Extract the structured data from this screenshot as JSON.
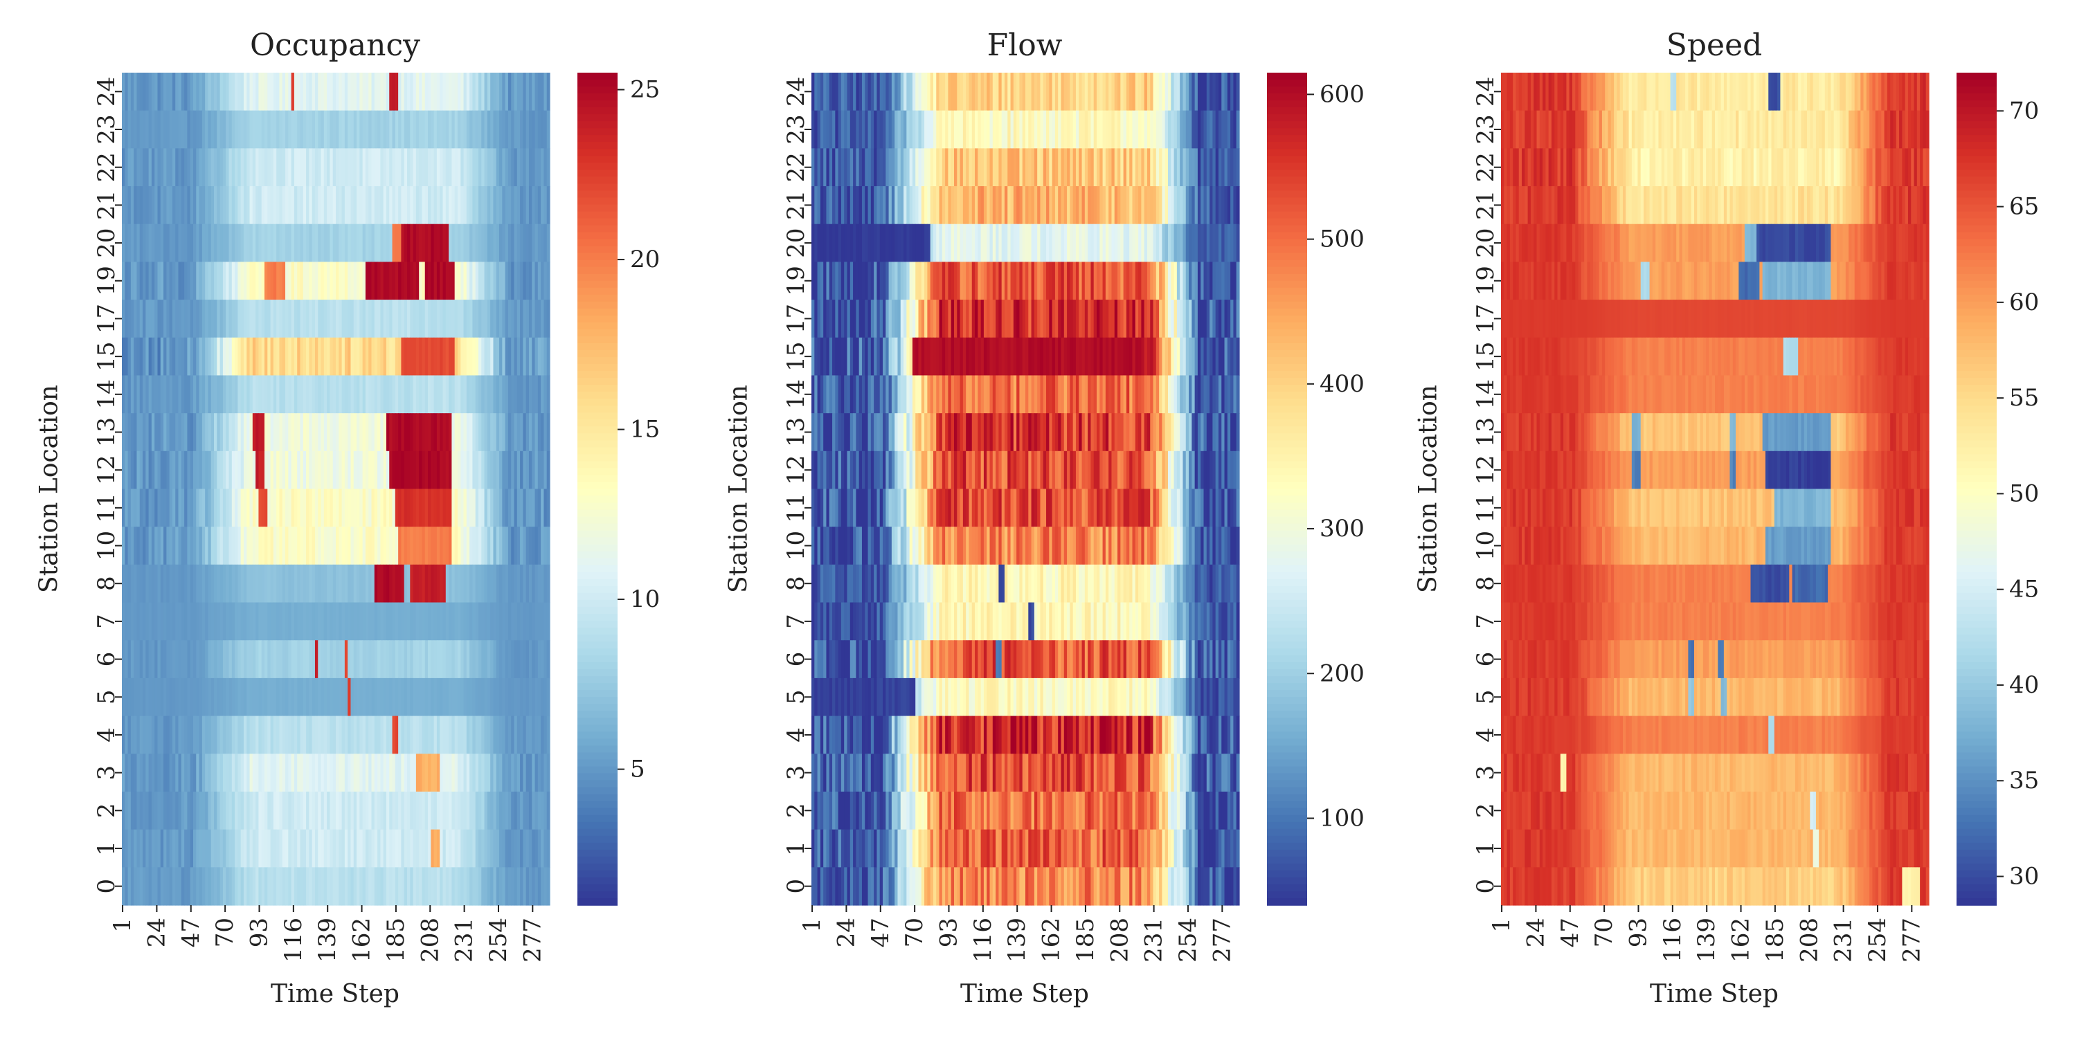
{
  "chart_data": [
    {
      "type": "heatmap",
      "title": "Occupancy",
      "xlabel": "Time Step",
      "ylabel": "Station Location",
      "x_range": [
        1,
        288
      ],
      "x_ticks": [
        "1",
        "24",
        "47",
        "70",
        "93",
        "116",
        "139",
        "162",
        "185",
        "208",
        "231",
        "254",
        "277"
      ],
      "y_ticks": [
        "24",
        "23",
        "22",
        "21",
        "20",
        "19",
        "17",
        "15",
        "14",
        "13",
        "12",
        "11",
        "10",
        "8",
        "7",
        "6",
        "5",
        "4",
        "3",
        "2",
        "1",
        "0"
      ],
      "colorbar": {
        "range": [
          1,
          25.5
        ],
        "ticks": [
          "5",
          "10",
          "15",
          "20",
          "25"
        ],
        "colormap": "RdYlBu_r"
      },
      "base": 5,
      "peak": 11,
      "station_peaks": [
        11,
        8,
        10,
        10,
        8,
        13,
        9,
        16,
        9,
        12,
        12,
        13,
        13,
        7,
        6,
        8,
        6,
        9,
        11,
        10,
        10,
        9
      ],
      "congestion": [
        {
          "row": "24",
          "t": [
            181,
            186
          ],
          "value": 24
        },
        {
          "row": "24",
          "t": [
            116,
            117
          ],
          "value": 23
        },
        {
          "row": "20",
          "t": [
            184,
            188
          ],
          "value": 20
        },
        {
          "row": "20",
          "t": [
            190,
            220
          ],
          "value": 25
        },
        {
          "row": "19",
          "t": [
            165,
            200
          ],
          "value": 25
        },
        {
          "row": "19",
          "t": [
            205,
            225
          ],
          "value": 25
        },
        {
          "row": "19",
          "t": [
            98,
            110
          ],
          "value": 20
        },
        {
          "row": "15",
          "t": [
            190,
            225
          ],
          "value": 22
        },
        {
          "row": "13",
          "t": [
            90,
            96
          ],
          "value": 24
        },
        {
          "row": "13",
          "t": [
            180,
            222
          ],
          "value": 25
        },
        {
          "row": "12",
          "t": [
            92,
            96
          ],
          "value": 24
        },
        {
          "row": "12",
          "t": [
            182,
            222
          ],
          "value": 25
        },
        {
          "row": "11",
          "t": [
            94,
            98
          ],
          "value": 22
        },
        {
          "row": "11",
          "t": [
            185,
            222
          ],
          "value": 23
        },
        {
          "row": "10",
          "t": [
            188,
            222
          ],
          "value": 20
        },
        {
          "row": "8",
          "t": [
            172,
            190
          ],
          "value": 25
        },
        {
          "row": "8",
          "t": [
            196,
            218
          ],
          "value": 24
        },
        {
          "row": "6",
          "t": [
            131,
            133
          ],
          "value": 24
        },
        {
          "row": "6",
          "t": [
            151,
            153
          ],
          "value": 22
        },
        {
          "row": "5",
          "t": [
            153,
            155
          ],
          "value": 23
        },
        {
          "row": "4",
          "t": [
            184,
            186
          ],
          "value": 22
        },
        {
          "row": "3",
          "t": [
            200,
            215
          ],
          "value": 18
        },
        {
          "row": "1",
          "t": [
            210,
            214
          ],
          "value": 18
        }
      ]
    },
    {
      "type": "heatmap",
      "title": "Flow",
      "xlabel": "Time Step",
      "ylabel": "Station Location",
      "x_range": [
        1,
        288
      ],
      "x_ticks": [
        "1",
        "24",
        "47",
        "70",
        "93",
        "116",
        "139",
        "162",
        "185",
        "208",
        "231",
        "254",
        "277"
      ],
      "y_ticks": [
        "24",
        "23",
        "22",
        "21",
        "20",
        "19",
        "17",
        "15",
        "14",
        "13",
        "12",
        "11",
        "10",
        "8",
        "7",
        "6",
        "5",
        "4",
        "3",
        "2",
        "1",
        "0"
      ],
      "colorbar": {
        "range": [
          40,
          615
        ],
        "ticks": [
          "100",
          "200",
          "300",
          "400",
          "500",
          "600"
        ],
        "colormap": "RdYlBu_r"
      },
      "base": 70,
      "peak": 420,
      "station_peaks": [
        400,
        330,
        410,
        430,
        280,
        520,
        560,
        580,
        500,
        550,
        530,
        530,
        480,
        340,
        340,
        520,
        330,
        560,
        530,
        500,
        510,
        480
      ],
      "congestion": [
        {
          "row": "20",
          "t": [
            1,
            80
          ],
          "value": 40
        },
        {
          "row": "5",
          "t": [
            1,
            70
          ],
          "value": 50
        },
        {
          "row": "8",
          "t": [
            128,
            130
          ],
          "value": 60
        },
        {
          "row": "7",
          "t": [
            148,
            150
          ],
          "value": 60
        },
        {
          "row": "6",
          "t": [
            126,
            128
          ],
          "value": 100
        },
        {
          "row": "15",
          "t": [
            70,
            225
          ],
          "value": 600
        }
      ]
    },
    {
      "type": "heatmap",
      "title": "Speed",
      "xlabel": "Time Step",
      "ylabel": "Station Location",
      "x_range": [
        1,
        288
      ],
      "x_ticks": [
        "1",
        "24",
        "47",
        "70",
        "93",
        "116",
        "139",
        "162",
        "185",
        "208",
        "231",
        "254",
        "277"
      ],
      "y_ticks": [
        "24",
        "23",
        "22",
        "21",
        "20",
        "19",
        "17",
        "15",
        "14",
        "13",
        "12",
        "11",
        "10",
        "8",
        "7",
        "6",
        "5",
        "4",
        "3",
        "2",
        "1",
        "0"
      ],
      "colorbar": {
        "range": [
          28.5,
          72
        ],
        "ticks": [
          "30",
          "35",
          "40",
          "45",
          "50",
          "55",
          "60",
          "65",
          "70"
        ],
        "colormap": "RdYlBu_r"
      },
      "base": 67,
      "peak": 57,
      "station_peaks": [
        53,
        53,
        52,
        54,
        60,
        60,
        66,
        62,
        62,
        57,
        60,
        57,
        58,
        62,
        62,
        60,
        58,
        62,
        58,
        58,
        58,
        56
      ],
      "congestion": [
        {
          "row": "24",
          "t": [
            182,
            188
          ],
          "value": 30
        },
        {
          "row": "24",
          "t": [
            116,
            118
          ],
          "value": 42
        },
        {
          "row": "20",
          "t": [
            172,
            222
          ],
          "value": 30
        },
        {
          "row": "20",
          "t": [
            165,
            172
          ],
          "value": 38
        },
        {
          "row": "19",
          "t": [
            162,
            175
          ],
          "value": 32
        },
        {
          "row": "19",
          "t": [
            178,
            222
          ],
          "value": 38
        },
        {
          "row": "19",
          "t": [
            95,
            100
          ],
          "value": 42
        },
        {
          "row": "15",
          "t": [
            192,
            200
          ],
          "value": 42
        },
        {
          "row": "13",
          "t": [
            178,
            222
          ],
          "value": 36
        },
        {
          "row": "13",
          "t": [
            90,
            94
          ],
          "value": 38
        },
        {
          "row": "13",
          "t": [
            155,
            158
          ],
          "value": 38
        },
        {
          "row": "12",
          "t": [
            180,
            222
          ],
          "value": 29
        },
        {
          "row": "12",
          "t": [
            90,
            94
          ],
          "value": 34
        },
        {
          "row": "12",
          "t": [
            155,
            158
          ],
          "value": 34
        },
        {
          "row": "11",
          "t": [
            185,
            222
          ],
          "value": 38
        },
        {
          "row": "10",
          "t": [
            180,
            222
          ],
          "value": 36
        },
        {
          "row": "8",
          "t": [
            170,
            195
          ],
          "value": 30
        },
        {
          "row": "8",
          "t": [
            197,
            220
          ],
          "value": 32
        },
        {
          "row": "6",
          "t": [
            128,
            131
          ],
          "value": 32
        },
        {
          "row": "6",
          "t": [
            148,
            151
          ],
          "value": 34
        },
        {
          "row": "5",
          "t": [
            128,
            131
          ],
          "value": 40
        },
        {
          "row": "5",
          "t": [
            150,
            153
          ],
          "value": 38
        },
        {
          "row": "4",
          "t": [
            182,
            184
          ],
          "value": 42
        },
        {
          "row": "3",
          "t": [
            42,
            44
          ],
          "value": 52
        },
        {
          "row": "2",
          "t": [
            210,
            213
          ],
          "value": 45
        },
        {
          "row": "1",
          "t": [
            212,
            214
          ],
          "value": 48
        },
        {
          "row": "0",
          "t": [
            272,
            282
          ],
          "value": 52
        }
      ]
    }
  ]
}
